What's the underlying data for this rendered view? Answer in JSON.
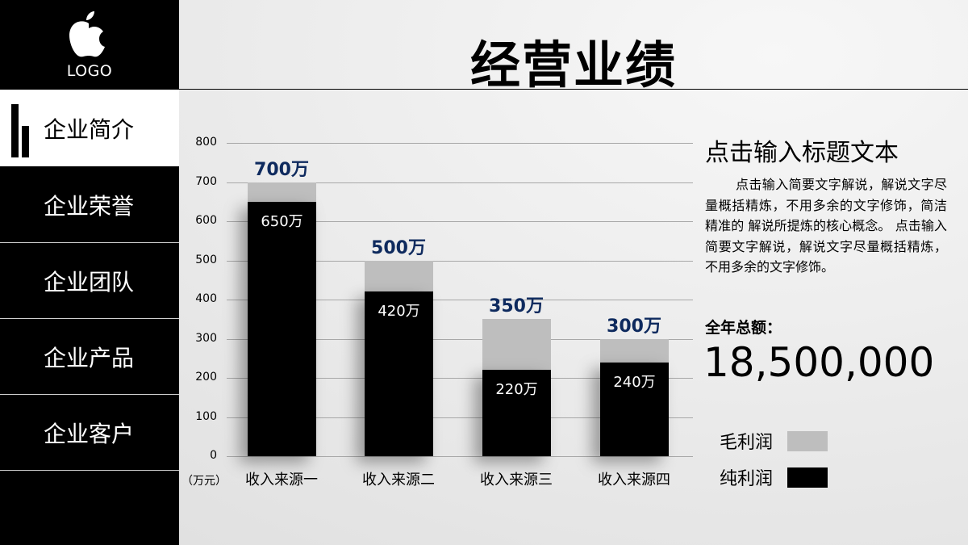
{
  "sidebar": {
    "logo_text": "LOGO",
    "items": [
      {
        "label": "企业简介",
        "active": true
      },
      {
        "label": "企业荣誉",
        "active": false
      },
      {
        "label": "企业团队",
        "active": false
      },
      {
        "label": "企业产品",
        "active": false
      },
      {
        "label": "企业客户",
        "active": false
      }
    ]
  },
  "header": {
    "title": "经营业绩"
  },
  "chart_data": {
    "type": "bar",
    "title": "",
    "xlabel": "",
    "ylabel": "（万元）",
    "ylim": [
      0,
      800
    ],
    "yticks": [
      "0",
      "100",
      "200",
      "300",
      "400",
      "500",
      "600",
      "700",
      "800"
    ],
    "grid": true,
    "categories": [
      "收入来源一",
      "收入来源二",
      "收入来源三",
      "收入来源四"
    ],
    "series": [
      {
        "name": "毛利润",
        "color": "#bebebe",
        "values": [
          700,
          500,
          350,
          300
        ],
        "labels": [
          "700万",
          "500万",
          "350万",
          "300万"
        ]
      },
      {
        "name": "纯利润",
        "color": "#000000",
        "values": [
          650,
          420,
          220,
          240
        ],
        "labels": [
          "650万",
          "420万",
          "220万",
          "240万"
        ]
      }
    ],
    "legend": {
      "position": "right"
    }
  },
  "panel": {
    "title": "点击输入标题文本",
    "description": "点击输入简要文字解说，解说文字尽量概括精炼，不用多余的文字修饰，简洁精准的 解说所提炼的核心概念。 点击输入简要文字解说，解说文字尽量概括精炼，不用多余的文字修饰。",
    "total_label": "全年总额：",
    "total_value": "18,500,000"
  },
  "legend": [
    {
      "label": "毛利润",
      "color": "#bebebe"
    },
    {
      "label": "纯利润",
      "color": "#000000"
    }
  ]
}
